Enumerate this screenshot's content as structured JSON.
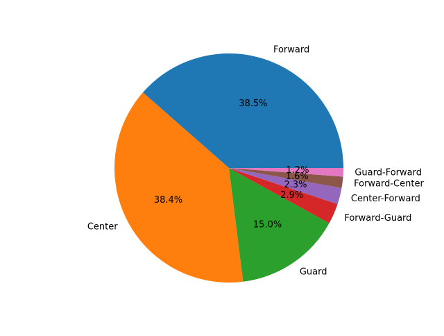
{
  "chart_data": {
    "type": "pie",
    "title": "",
    "start_angle_deg": 0,
    "direction": "counterclockwise",
    "labels": [
      "Forward",
      "Center",
      "Guard",
      "Forward-Guard",
      "Center-Forward",
      "Forward-Center",
      "Guard-Forward"
    ],
    "values": [
      38.5,
      38.4,
      15.0,
      2.9,
      2.3,
      1.6,
      1.2
    ],
    "pct_labels": [
      "38.5%",
      "38.4%",
      "15.0%",
      "2.9%",
      "2.3%",
      "1.6%",
      "1.2%"
    ],
    "colors": [
      "#1f77b4",
      "#ff7f0e",
      "#2ca02c",
      "#d62728",
      "#9467bd",
      "#8c564b",
      "#e377c2"
    ]
  }
}
